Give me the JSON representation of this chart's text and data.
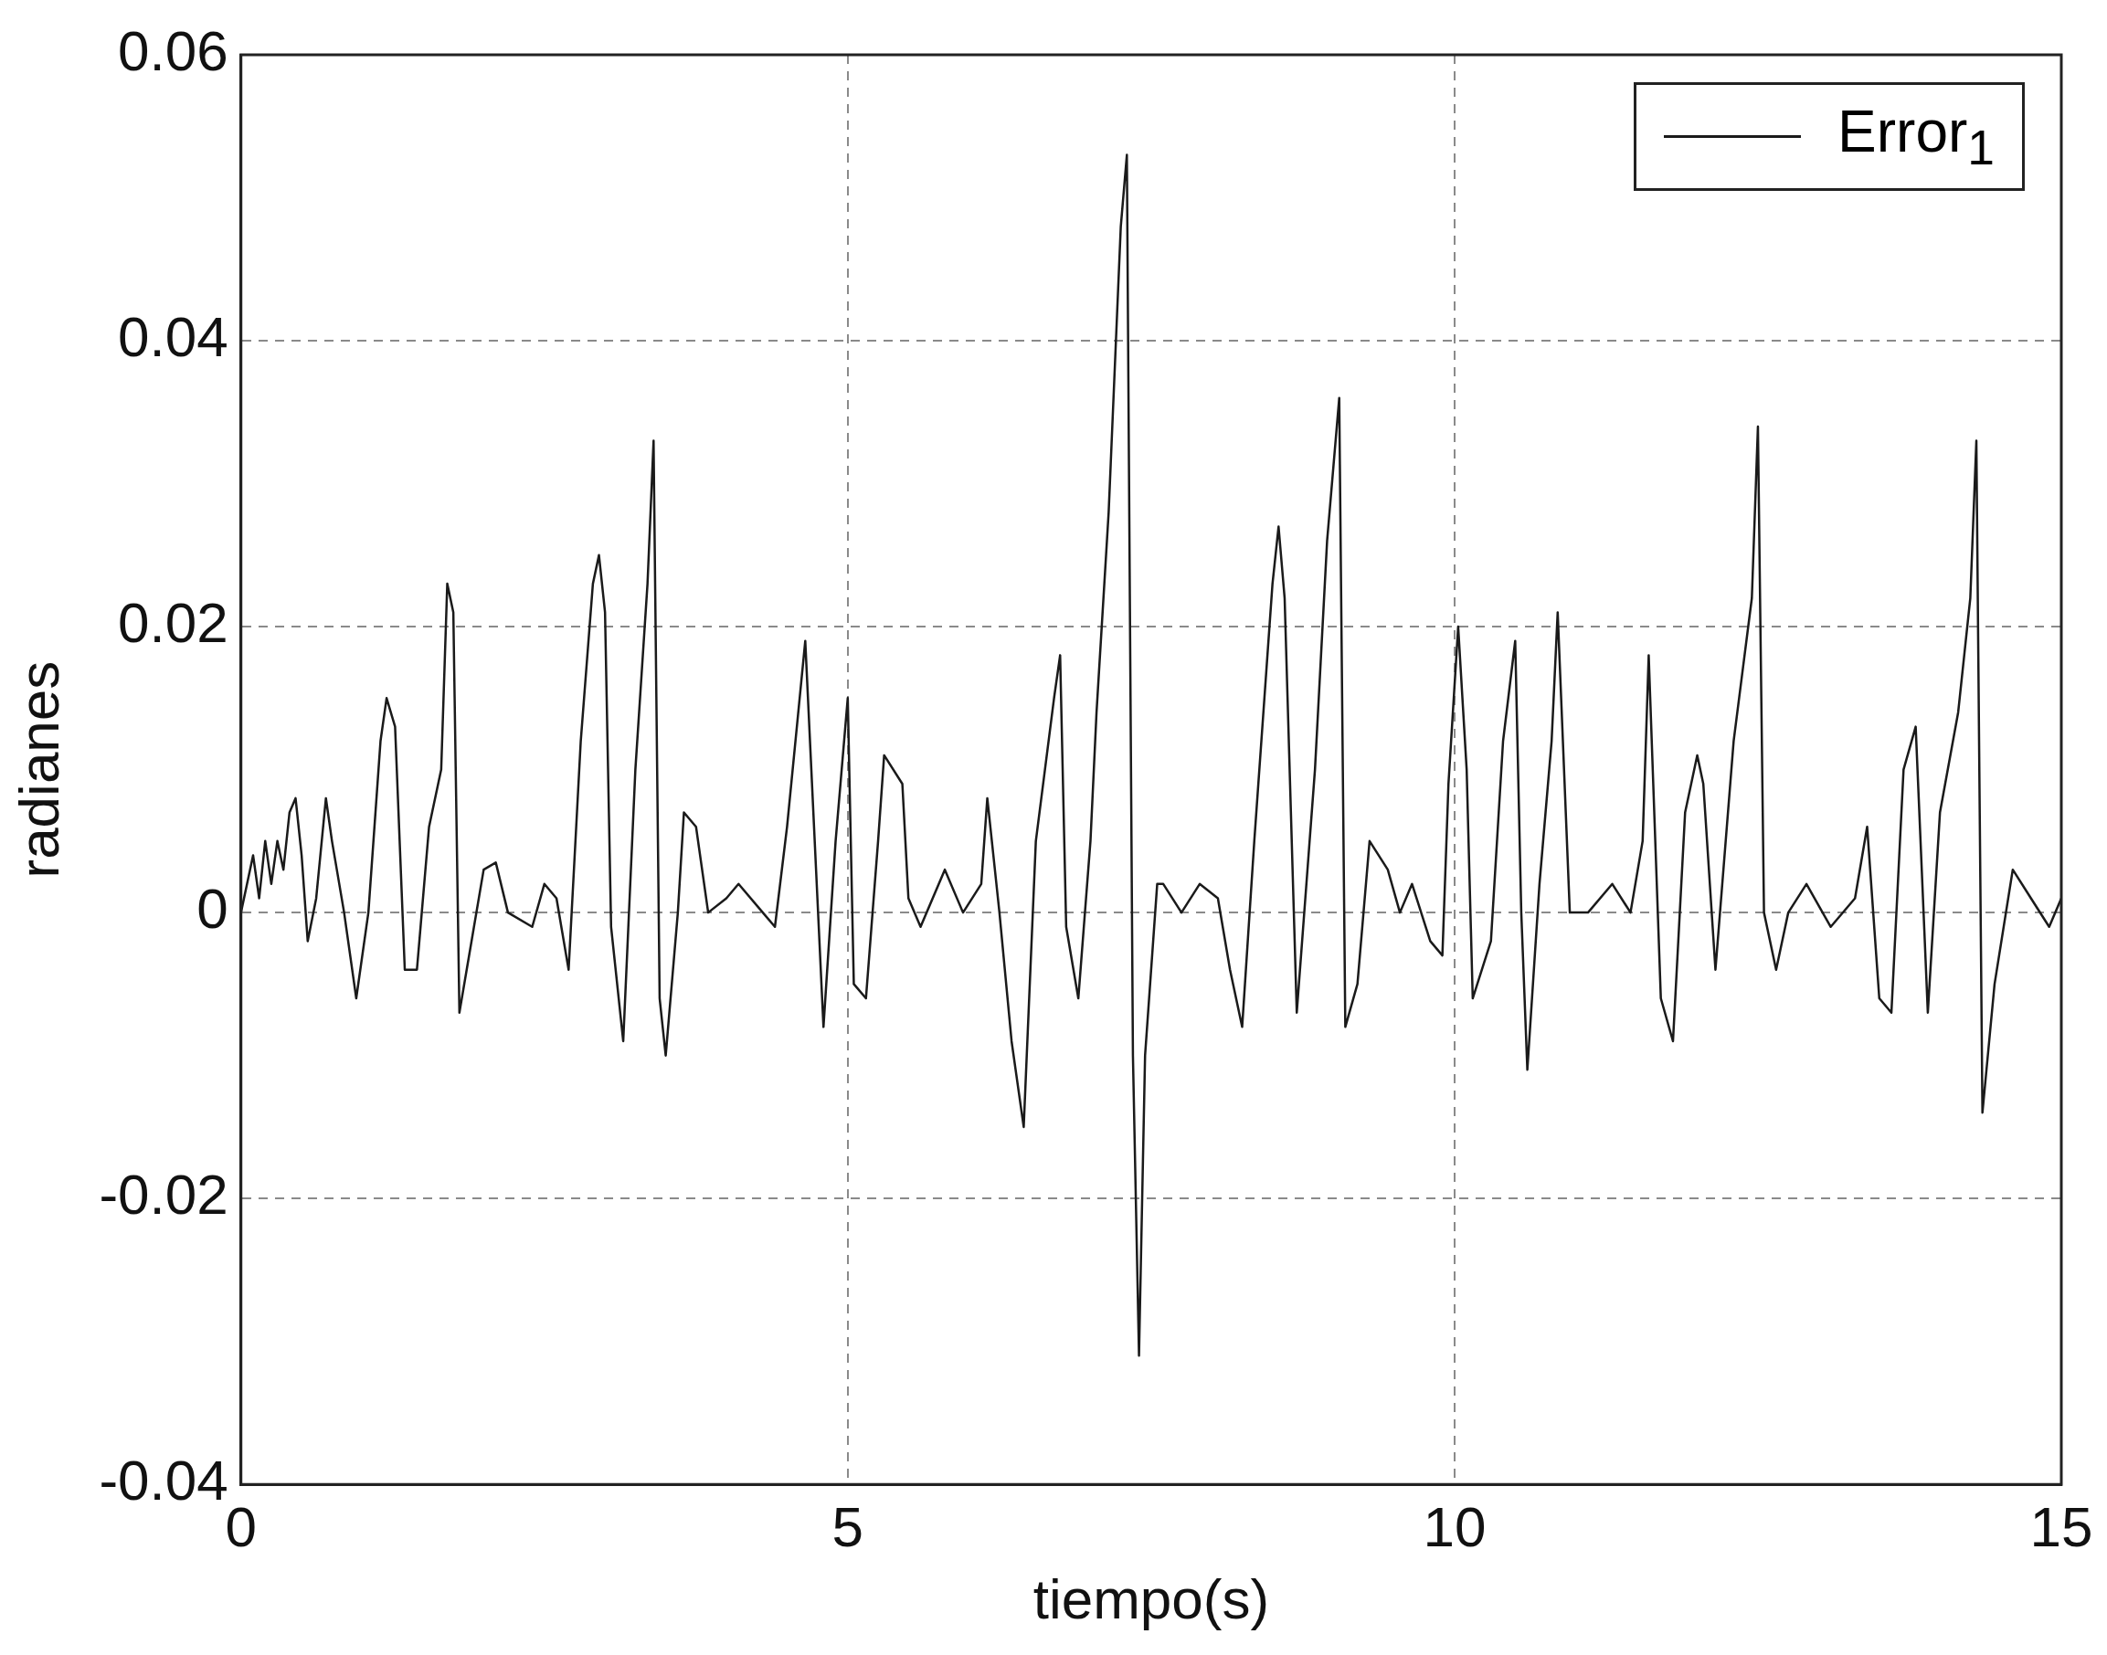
{
  "chart_data": {
    "type": "line",
    "xlabel": "tiempo(s)",
    "ylabel": "radianes",
    "xlim": [
      0,
      15
    ],
    "xticks": [
      0,
      5,
      10,
      15
    ],
    "ylim": [
      -0.04,
      0.06
    ],
    "yticks": [
      -0.04,
      -0.02,
      0,
      0.02,
      0.04,
      0.06
    ],
    "grid": true,
    "legend": "top right",
    "series": [
      {
        "name": "Error$_{1}$",
        "color": "#1a1a1a",
        "x": [
          0,
          0.1,
          0.15,
          0.2,
          0.25,
          0.3,
          0.35,
          0.4,
          0.45,
          0.5,
          0.55,
          0.62,
          0.7,
          0.75,
          0.85,
          0.95,
          1.05,
          1.15,
          1.2,
          1.27,
          1.35,
          1.45,
          1.55,
          1.65,
          1.7,
          1.75,
          1.8,
          1.9,
          2.0,
          2.1,
          2.2,
          2.4,
          2.5,
          2.6,
          2.7,
          2.8,
          2.9,
          2.95,
          3.0,
          3.05,
          3.15,
          3.25,
          3.35,
          3.4,
          3.45,
          3.5,
          3.6,
          3.65,
          3.75,
          3.85,
          4.0,
          4.1,
          4.3,
          4.4,
          4.5,
          4.65,
          4.7,
          4.8,
          4.9,
          5.0,
          5.05,
          5.15,
          5.25,
          5.3,
          5.45,
          5.5,
          5.6,
          5.8,
          5.95,
          6.1,
          6.15,
          6.25,
          6.35,
          6.45,
          6.55,
          6.7,
          6.75,
          6.8,
          6.9,
          7.0,
          7.05,
          7.15,
          7.25,
          7.3,
          7.35,
          7.4,
          7.45,
          7.55,
          7.6,
          7.75,
          7.9,
          8.05,
          8.15,
          8.25,
          8.35,
          8.5,
          8.55,
          8.6,
          8.7,
          8.85,
          8.95,
          9.05,
          9.1,
          9.2,
          9.3,
          9.45,
          9.55,
          9.65,
          9.8,
          9.9,
          9.95,
          10.03,
          10.1,
          10.15,
          10.3,
          10.4,
          10.5,
          10.55,
          10.6,
          10.7,
          10.8,
          10.85,
          10.95,
          11.1,
          11.3,
          11.45,
          11.55,
          11.6,
          11.7,
          11.8,
          11.9,
          12.0,
          12.05,
          12.15,
          12.3,
          12.45,
          12.5,
          12.55,
          12.65,
          12.75,
          12.9,
          13.1,
          13.3,
          13.4,
          13.5,
          13.6,
          13.7,
          13.8,
          13.9,
          14.0,
          14.15,
          14.25,
          14.3,
          14.35,
          14.45,
          14.6,
          14.75,
          14.9,
          15
        ],
        "values": [
          0,
          0.004,
          0.001,
          0.005,
          0.002,
          0.005,
          0.003,
          0.007,
          0.008,
          0.004,
          -0.002,
          0.001,
          0.008,
          0.005,
          0,
          -0.006,
          0,
          0.012,
          0.015,
          0.013,
          -0.004,
          -0.004,
          0.006,
          0.01,
          0.023,
          0.021,
          -0.007,
          -0.002,
          0.003,
          0.0035,
          0,
          -0.001,
          0.002,
          0.001,
          -0.004,
          0.012,
          0.023,
          0.025,
          0.021,
          -0.001,
          -0.009,
          0.01,
          0.023,
          0.033,
          -0.006,
          -0.01,
          0,
          0.007,
          0.006,
          0,
          0.001,
          0.002,
          0,
          -0.001,
          0.006,
          0.019,
          0.01,
          -0.008,
          0.005,
          0.015,
          -0.005,
          -0.006,
          0.005,
          0.011,
          0.009,
          0.001,
          -0.001,
          0.003,
          0,
          0.002,
          0.008,
          0,
          -0.009,
          -0.015,
          0.005,
          0.015,
          0.018,
          -0.001,
          -0.006,
          0.005,
          0.014,
          0.028,
          0.048,
          0.053,
          -0.01,
          -0.031,
          -0.01,
          0.002,
          0.002,
          0,
          0.002,
          0.001,
          -0.004,
          -0.008,
          0.005,
          0.023,
          0.027,
          0.022,
          -0.007,
          0.01,
          0.026,
          0.036,
          -0.008,
          -0.005,
          0.005,
          0.003,
          0,
          0.002,
          -0.002,
          -0.003,
          0.009,
          0.02,
          0.01,
          -0.006,
          -0.002,
          0.012,
          0.019,
          0,
          -0.011,
          0.002,
          0.012,
          0.021,
          0,
          0,
          0.002,
          0,
          0.005,
          0.018,
          -0.006,
          -0.009,
          0.007,
          0.011,
          0.009,
          -0.004,
          0.012,
          0.022,
          0.034,
          0,
          -0.004,
          0,
          0.002,
          -0.001,
          0.001,
          0.006,
          -0.006,
          -0.007,
          0.01,
          0.013,
          -0.007,
          0.007,
          0.014,
          0.022,
          0.033,
          -0.014,
          -0.005,
          0.003,
          0.001,
          -0.001,
          0.001
        ]
      }
    ]
  }
}
